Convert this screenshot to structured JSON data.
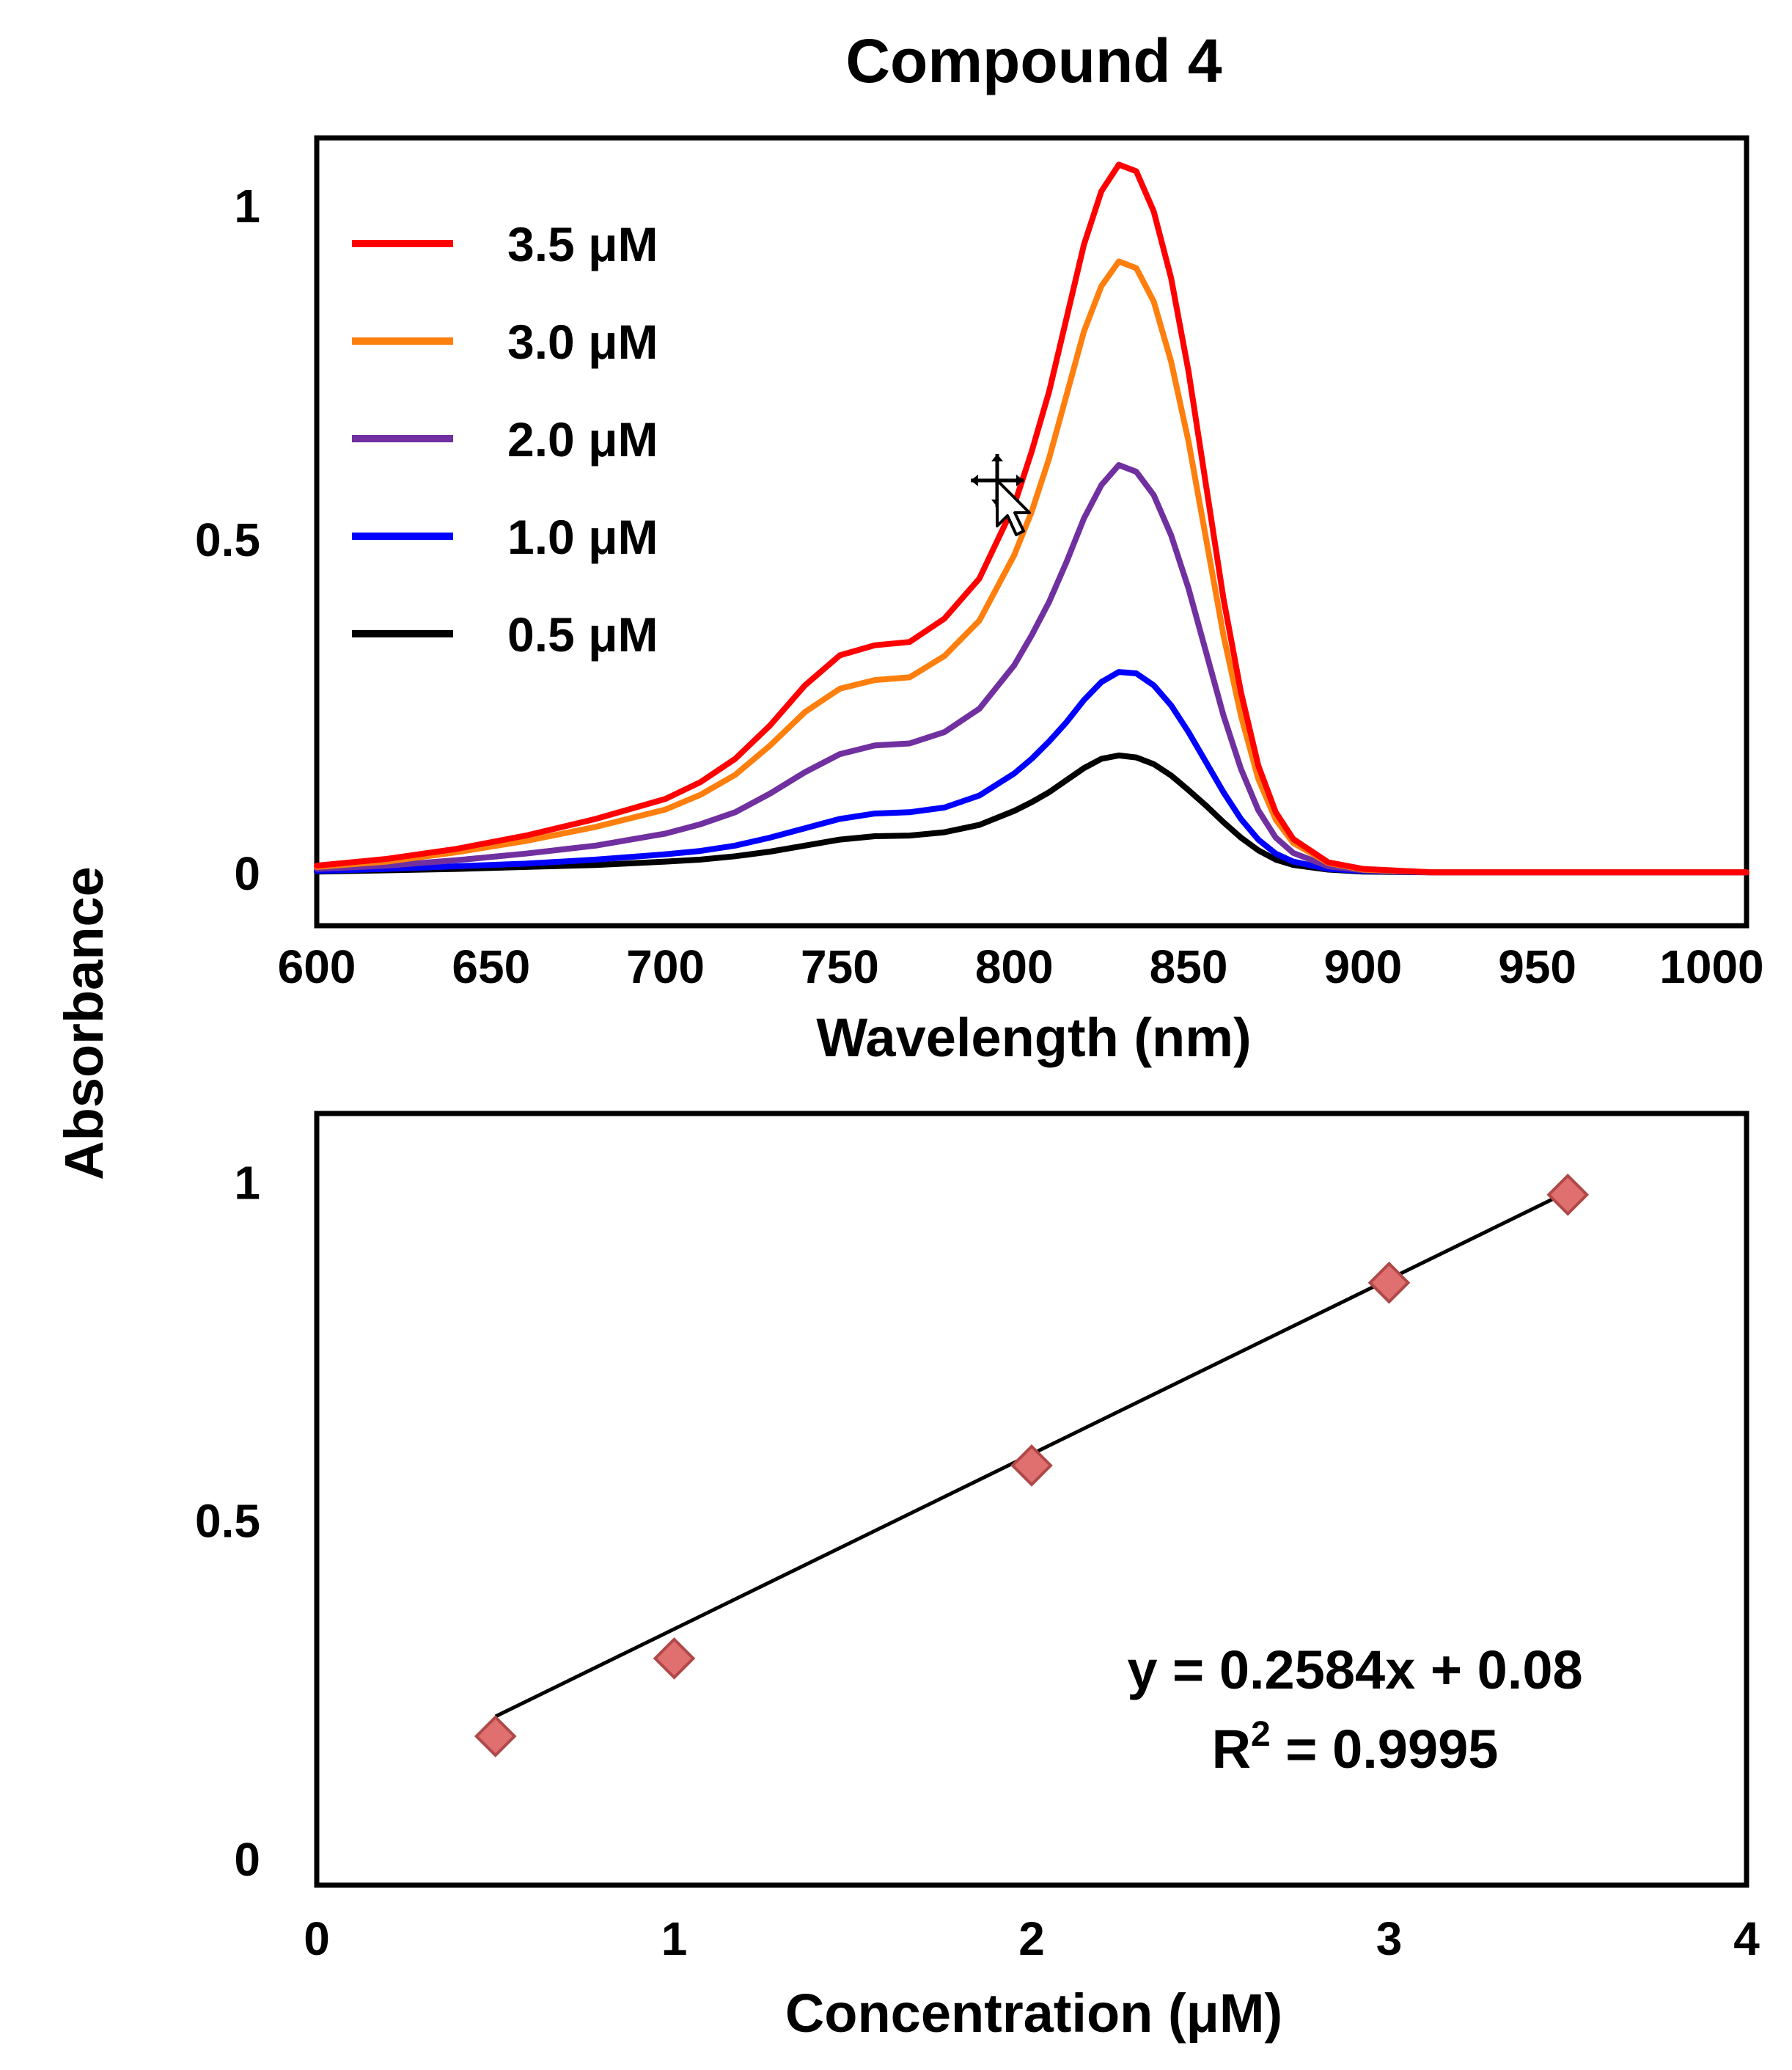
{
  "figure": {
    "title": "Compound 4",
    "shared_ylabel": "Absorbance"
  },
  "chart_data": [
    {
      "type": "line",
      "xlabel": "Wavelength (nm)",
      "ylabel": "Absorbance",
      "xlim": [
        600,
        1010
      ],
      "ylim": [
        -0.08,
        1.1
      ],
      "x_ticks": [
        600,
        650,
        700,
        750,
        800,
        850,
        900,
        950,
        1000
      ],
      "y_ticks": [
        0,
        0.5,
        1
      ],
      "x_tick_labels": [
        "600",
        "650",
        "700",
        "750",
        "800",
        "850",
        "900",
        "950",
        "1000"
      ],
      "y_tick_labels": [
        "0",
        "0.5",
        "1"
      ],
      "grid": false,
      "legend_position": "top-left",
      "x": [
        600,
        620,
        640,
        660,
        680,
        700,
        710,
        720,
        730,
        740,
        750,
        760,
        770,
        780,
        790,
        800,
        805,
        810,
        815,
        820,
        825,
        830,
        835,
        840,
        845,
        850,
        855,
        860,
        865,
        870,
        875,
        880,
        890,
        900,
        920,
        940,
        960,
        980,
        1000,
        1010
      ],
      "series": [
        {
          "name": "3.5 μM",
          "color": "#ff0000",
          "values": [
            0.01,
            0.02,
            0.035,
            0.055,
            0.08,
            0.11,
            0.135,
            0.17,
            0.22,
            0.28,
            0.325,
            0.34,
            0.345,
            0.38,
            0.44,
            0.55,
            0.63,
            0.72,
            0.83,
            0.94,
            1.02,
            1.06,
            1.05,
            0.99,
            0.89,
            0.75,
            0.58,
            0.41,
            0.27,
            0.16,
            0.09,
            0.05,
            0.015,
            0.005,
            0.0,
            0.0,
            0.0,
            0.0,
            0.0,
            0.0
          ]
        },
        {
          "name": "3.0 μM",
          "color": "#ff7f0e",
          "values": [
            0.008,
            0.016,
            0.03,
            0.047,
            0.068,
            0.094,
            0.116,
            0.146,
            0.19,
            0.24,
            0.275,
            0.288,
            0.292,
            0.324,
            0.377,
            0.475,
            0.54,
            0.62,
            0.715,
            0.81,
            0.878,
            0.915,
            0.905,
            0.855,
            0.765,
            0.645,
            0.5,
            0.355,
            0.235,
            0.14,
            0.079,
            0.044,
            0.014,
            0.004,
            0.0,
            0.0,
            0.0,
            0.0,
            0.0,
            0.0
          ]
        },
        {
          "name": "2.0 μM",
          "color": "#7030a0",
          "values": [
            0.005,
            0.01,
            0.018,
            0.028,
            0.04,
            0.058,
            0.072,
            0.09,
            0.118,
            0.15,
            0.177,
            0.19,
            0.193,
            0.21,
            0.245,
            0.31,
            0.355,
            0.405,
            0.465,
            0.53,
            0.58,
            0.61,
            0.6,
            0.565,
            0.505,
            0.425,
            0.33,
            0.235,
            0.155,
            0.093,
            0.052,
            0.029,
            0.009,
            0.003,
            0.0,
            0.0,
            0.0,
            0.0,
            0.0,
            0.0
          ]
        },
        {
          "name": "1.0 μM",
          "color": "#0000ff",
          "values": [
            0.002,
            0.005,
            0.009,
            0.013,
            0.019,
            0.027,
            0.032,
            0.04,
            0.052,
            0.066,
            0.08,
            0.088,
            0.09,
            0.097,
            0.115,
            0.148,
            0.17,
            0.196,
            0.225,
            0.258,
            0.285,
            0.3,
            0.298,
            0.28,
            0.25,
            0.21,
            0.165,
            0.12,
            0.08,
            0.049,
            0.028,
            0.016,
            0.005,
            0.002,
            0.0,
            0.0,
            0.0,
            0.0,
            0.0,
            0.0
          ]
        },
        {
          "name": "0.5 μM",
          "color": "#000000",
          "values": [
            0.001,
            0.003,
            0.005,
            0.008,
            0.011,
            0.016,
            0.019,
            0.024,
            0.031,
            0.04,
            0.049,
            0.054,
            0.055,
            0.06,
            0.071,
            0.092,
            0.105,
            0.12,
            0.138,
            0.156,
            0.17,
            0.175,
            0.172,
            0.162,
            0.145,
            0.123,
            0.1,
            0.075,
            0.052,
            0.033,
            0.019,
            0.011,
            0.004,
            0.001,
            0.0,
            0.0,
            0.0,
            0.0,
            0.0,
            0.0
          ]
        }
      ]
    },
    {
      "type": "scatter",
      "xlabel": "Concentration (μM)",
      "ylabel": "Absorbance",
      "xlim": [
        0,
        4
      ],
      "ylim": [
        -0.04,
        1.1
      ],
      "x_ticks": [
        0,
        1,
        2,
        3,
        4
      ],
      "y_ticks": [
        0,
        0.5,
        1
      ],
      "x_tick_labels": [
        "0",
        "1",
        "2",
        "3",
        "4"
      ],
      "y_tick_labels": [
        "0",
        "0.5",
        "1"
      ],
      "grid": false,
      "marker": "diamond",
      "marker_color": "#e07070",
      "x": [
        0.5,
        1.0,
        2.0,
        3.0,
        3.5
      ],
      "y": [
        0.18,
        0.295,
        0.58,
        0.85,
        0.98
      ],
      "trendline": {
        "slope": 0.2584,
        "intercept": 0.08,
        "x_range": [
          0.5,
          3.5
        ]
      },
      "equation": "y = 0.2584x + 0.08",
      "r2_prefix": "R",
      "r2_superscript": "2",
      "r2_value": " = 0.9995"
    }
  ]
}
